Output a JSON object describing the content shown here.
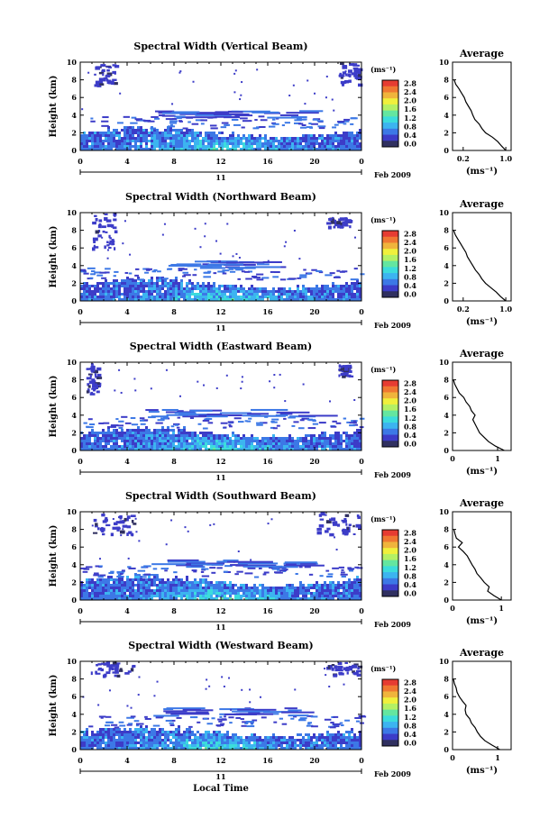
{
  "figure": {
    "xlabel": "Local Time",
    "date_label": "Feb 2009",
    "day_label": "11",
    "colorbar_unit": "(ms⁻¹)",
    "colorbar_ticks": [
      "0.0",
      "0.4",
      "0.8",
      "1.2",
      "1.6",
      "2.0",
      "2.4",
      "2.8"
    ],
    "colorbar_colors": [
      "#303060",
      "#3c3cc8",
      "#3c78e6",
      "#3cb4f0",
      "#3cdcdc",
      "#64e6a0",
      "#b4f064",
      "#f0f03c",
      "#f0b43c",
      "#f07832",
      "#e63c32"
    ],
    "average_title": "Average",
    "average_xlabel": "(ms⁻¹)",
    "time_ticks": [
      "0",
      "4",
      "8",
      "12",
      "16",
      "20",
      "0"
    ],
    "height_ticks": [
      "0",
      "2",
      "4",
      "6",
      "8",
      "10"
    ]
  },
  "chart_data": [
    {
      "type": "heatmap",
      "title": "Spectral Width (Vertical Beam)",
      "ylabel": "Height (km)",
      "xlabel": "Local Time",
      "xlim": [
        0,
        24
      ],
      "ylim": [
        0,
        10
      ],
      "colorbar_range": [
        0,
        2.8
      ],
      "boundary_layer_top_km": 2.6,
      "upper_layer_km": [
        3.8,
        4.6
      ],
      "upper_layer_hours": [
        6,
        19
      ],
      "cirrus_patches": [
        [
          1,
          3,
          7.5,
          10
        ],
        [
          22,
          24,
          7.5,
          10
        ]
      ]
    },
    {
      "type": "line",
      "title": "Average",
      "xlabel": "(ms⁻¹)",
      "ylabel": "",
      "xlim": [
        0,
        1.1
      ],
      "ylim": [
        0,
        10
      ],
      "x_ticks": [
        "0.2",
        "1.0"
      ],
      "x_tick_values": [
        0.2,
        1.0
      ],
      "x": [
        1.0,
        0.92,
        0.85,
        0.75,
        0.62,
        0.55,
        0.5,
        0.42,
        0.38,
        0.35,
        0.3,
        0.25,
        0.22,
        0.17,
        0.12,
        0.06,
        0.03
      ],
      "y": [
        0,
        0.5,
        1,
        1.5,
        2,
        2.5,
        3,
        3.5,
        4,
        4.5,
        5,
        5.5,
        6,
        6.5,
        7,
        7.5,
        8
      ]
    },
    {
      "type": "heatmap",
      "title": "Spectral Width (Northward Beam)",
      "ylabel": "Height (km)",
      "xlabel": "Local Time",
      "xlim": [
        0,
        24
      ],
      "ylim": [
        0,
        10
      ],
      "colorbar_range": [
        0,
        2.8
      ],
      "boundary_layer_top_km": 2.5,
      "upper_layer_km": [
        3.8,
        4.6
      ],
      "upper_layer_hours": [
        7,
        16
      ],
      "cirrus_patches": [
        [
          1,
          3,
          6,
          10
        ],
        [
          21,
          23,
          8.5,
          9.5
        ]
      ]
    },
    {
      "type": "line",
      "title": "Average",
      "xlabel": "(ms⁻¹)",
      "ylabel": "",
      "xlim": [
        0,
        1.1
      ],
      "ylim": [
        0,
        10
      ],
      "x_ticks": [
        "0.2",
        "1.0"
      ],
      "x_tick_values": [
        0.2,
        1.0
      ],
      "x": [
        1.0,
        0.9,
        0.82,
        0.72,
        0.62,
        0.55,
        0.5,
        0.43,
        0.38,
        0.33,
        0.28,
        0.25,
        0.2,
        0.15,
        0.1,
        0.05,
        0.02
      ],
      "y": [
        0,
        0.5,
        1,
        1.5,
        2,
        2.5,
        3,
        3.5,
        4,
        4.5,
        5,
        5.5,
        6,
        6.5,
        7,
        7.5,
        8
      ]
    },
    {
      "type": "heatmap",
      "title": "Spectral Width (Eastward Beam)",
      "ylabel": "Height (km)",
      "xlabel": "Local Time",
      "xlim": [
        0,
        24
      ],
      "ylim": [
        0,
        10
      ],
      "colorbar_range": [
        0,
        2.8
      ],
      "boundary_layer_top_km": 2.6,
      "upper_layer_km": [
        3.9,
        4.7
      ],
      "upper_layer_hours": [
        5,
        19
      ],
      "cirrus_patches": [
        [
          0.5,
          1.5,
          6.5,
          10
        ],
        [
          22,
          23,
          8.5,
          9.8
        ]
      ]
    },
    {
      "type": "line",
      "title": "Average",
      "xlabel": "(ms⁻¹)",
      "ylabel": "",
      "xlim": [
        0,
        1.3
      ],
      "ylim": [
        0,
        10
      ],
      "x_ticks": [
        "0",
        "1"
      ],
      "x_tick_values": [
        0,
        1
      ],
      "x": [
        1.15,
        0.95,
        0.8,
        0.7,
        0.6,
        0.55,
        0.5,
        0.45,
        0.5,
        0.42,
        0.38,
        0.3,
        0.25,
        0.15,
        0.1,
        0.05,
        0.02
      ],
      "y": [
        0,
        0.5,
        1,
        1.5,
        2,
        2.5,
        3,
        3.5,
        4,
        4.5,
        5,
        5.5,
        6,
        6.5,
        7,
        7.5,
        8
      ]
    },
    {
      "type": "heatmap",
      "title": "Spectral Width (Southward Beam)",
      "ylabel": "Height (km)",
      "xlabel": "Local Time",
      "xlim": [
        0,
        24
      ],
      "ylim": [
        0,
        10
      ],
      "colorbar_range": [
        0,
        2.8
      ],
      "boundary_layer_top_km": 2.7,
      "upper_layer_km": [
        3.8,
        4.6
      ],
      "upper_layer_hours": [
        6,
        20
      ],
      "cirrus_patches": [
        [
          1,
          4.5,
          7.5,
          10
        ],
        [
          20,
          24,
          7.5,
          10
        ]
      ]
    },
    {
      "type": "line",
      "title": "Average",
      "xlabel": "(ms⁻¹)",
      "ylabel": "",
      "xlim": [
        0,
        1.2
      ],
      "ylim": [
        0,
        10
      ],
      "x_ticks": [
        "0",
        "1"
      ],
      "x_tick_values": [
        0,
        1
      ],
      "x": [
        1.0,
        0.85,
        0.72,
        0.75,
        0.65,
        0.58,
        0.5,
        0.46,
        0.4,
        0.35,
        0.3,
        0.22,
        0.12,
        0.2,
        0.08,
        0.05,
        0.03
      ],
      "y": [
        0,
        0.5,
        1,
        1.5,
        2,
        2.5,
        3,
        3.5,
        4,
        4.5,
        5,
        5.5,
        6,
        6.5,
        7,
        7.5,
        8
      ]
    },
    {
      "type": "heatmap",
      "title": "Spectral Width (Westward Beam)",
      "ylabel": "Height (km)",
      "xlabel": "Local Time",
      "xlim": [
        0,
        24
      ],
      "ylim": [
        0,
        10
      ],
      "colorbar_range": [
        0,
        2.8
      ],
      "boundary_layer_top_km": 2.6,
      "upper_layer_km": [
        3.8,
        4.8
      ],
      "upper_layer_hours": [
        6,
        18
      ],
      "cirrus_patches": [
        [
          0.5,
          4.5,
          8.5,
          10
        ],
        [
          21,
          24,
          8.5,
          10
        ]
      ]
    },
    {
      "type": "line",
      "title": "Average",
      "xlabel": "(ms⁻¹)",
      "ylabel": "",
      "xlim": [
        0,
        1.3
      ],
      "ylim": [
        0,
        10
      ],
      "x_ticks": [
        "0",
        "1"
      ],
      "x_tick_values": [
        0,
        1
      ],
      "x": [
        1.05,
        0.88,
        0.72,
        0.62,
        0.55,
        0.5,
        0.42,
        0.38,
        0.3,
        0.28,
        0.3,
        0.22,
        0.15,
        0.1,
        0.08,
        0.04,
        0.02
      ],
      "y": [
        0,
        0.5,
        1,
        1.5,
        2,
        2.5,
        3,
        3.5,
        4,
        4.5,
        5,
        5.5,
        6,
        6.5,
        7,
        7.5,
        8
      ]
    }
  ]
}
